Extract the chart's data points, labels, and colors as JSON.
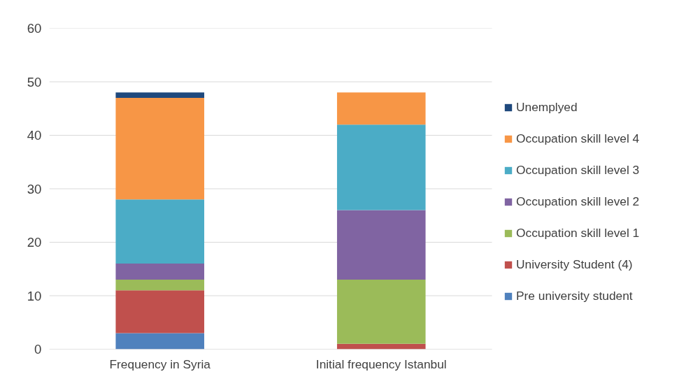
{
  "chart_data": {
    "type": "bar",
    "stacked": true,
    "categories": [
      "Frequency in Syria",
      "Initial frequency Istanbul"
    ],
    "series": [
      {
        "name": "Pre university student",
        "color": "#4f81bd",
        "values": [
          3,
          0
        ]
      },
      {
        "name": "University Student (4)",
        "color": "#c0504d",
        "values": [
          8,
          1
        ]
      },
      {
        "name": "Occupation skill level 1",
        "color": "#9bbb59",
        "values": [
          2,
          12
        ]
      },
      {
        "name": "Occupation skill level 2",
        "color": "#8064a2",
        "values": [
          3,
          13
        ]
      },
      {
        "name": "Occupation skill level 3",
        "color": "#4bacc6",
        "values": [
          12,
          16
        ]
      },
      {
        "name": "Occupation skill level 4",
        "color": "#f79646",
        "values": [
          19,
          6
        ]
      },
      {
        "name": "Unemplyed",
        "color": "#1f497d",
        "values": [
          1,
          0
        ]
      }
    ],
    "ylim": [
      0,
      60
    ],
    "yticks": [
      0,
      10,
      20,
      30,
      40,
      50,
      60
    ],
    "grid": "y",
    "legend": "right"
  }
}
